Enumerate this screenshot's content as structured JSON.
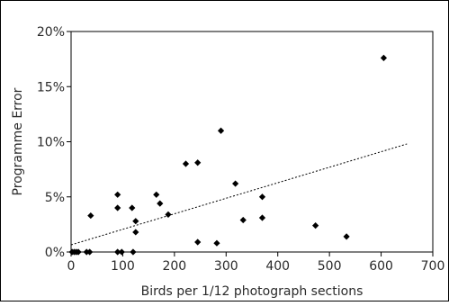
{
  "chart_data": {
    "type": "scatter",
    "xlabel": "Birds per 1/12 photograph sections",
    "ylabel": "Programme Error",
    "xlim": [
      0,
      700
    ],
    "ylim": [
      0,
      0.2
    ],
    "x_ticks": [
      0,
      100,
      200,
      300,
      400,
      500,
      600,
      700
    ],
    "x_tick_labels": [
      "0",
      "100",
      "200",
      "300",
      "400",
      "500",
      "600",
      "700"
    ],
    "y_ticks": [
      0,
      0.05,
      0.1,
      0.15,
      0.2
    ],
    "y_tick_labels": [
      "0%",
      "5%",
      "10%",
      "15%",
      "20%"
    ],
    "grid": false,
    "legend": false,
    "marker_color": "#000000",
    "trendline": {
      "style": "dotted",
      "x": [
        0,
        650
      ],
      "y": [
        0.0065,
        0.098
      ]
    },
    "points": [
      {
        "x": 2,
        "y": 0.0
      },
      {
        "x": 6,
        "y": 0.0
      },
      {
        "x": 10,
        "y": 0.0
      },
      {
        "x": 14,
        "y": 0.0
      },
      {
        "x": 30,
        "y": 0.0
      },
      {
        "x": 36,
        "y": 0.0
      },
      {
        "x": 38,
        "y": 0.033
      },
      {
        "x": 90,
        "y": 0.0
      },
      {
        "x": 98,
        "y": 0.0
      },
      {
        "x": 120,
        "y": 0.0
      },
      {
        "x": 90,
        "y": 0.052
      },
      {
        "x": 90,
        "y": 0.04
      },
      {
        "x": 118,
        "y": 0.04
      },
      {
        "x": 125,
        "y": 0.028
      },
      {
        "x": 125,
        "y": 0.018
      },
      {
        "x": 165,
        "y": 0.052
      },
      {
        "x": 172,
        "y": 0.044
      },
      {
        "x": 188,
        "y": 0.034
      },
      {
        "x": 222,
        "y": 0.08
      },
      {
        "x": 245,
        "y": 0.081
      },
      {
        "x": 245,
        "y": 0.009
      },
      {
        "x": 282,
        "y": 0.008
      },
      {
        "x": 290,
        "y": 0.11
      },
      {
        "x": 318,
        "y": 0.062
      },
      {
        "x": 333,
        "y": 0.029
      },
      {
        "x": 370,
        "y": 0.05
      },
      {
        "x": 370,
        "y": 0.031
      },
      {
        "x": 473,
        "y": 0.024
      },
      {
        "x": 533,
        "y": 0.014
      },
      {
        "x": 605,
        "y": 0.176
      }
    ]
  }
}
